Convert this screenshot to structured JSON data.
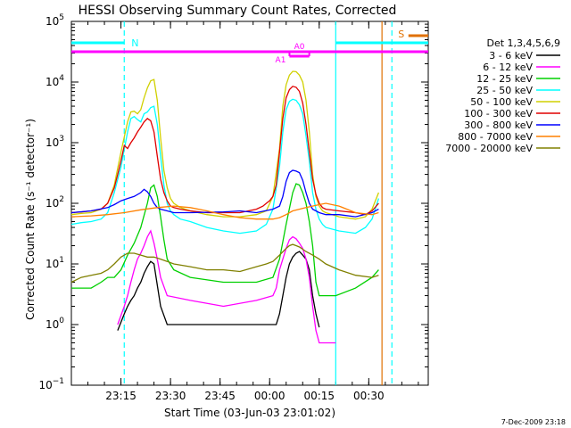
{
  "chart_data": {
    "type": "line",
    "title": "HESSI Observing Summary Count Rates, Corrected",
    "xlabel": "Start Time (03-Jun-03 23:01:02)",
    "ylabel": "Corrected Count Rate (s⁻¹ detector⁻¹)",
    "yscale": "log",
    "ylim": [
      0.1,
      100000
    ],
    "xlim_min": [
      -1,
      107
    ],
    "x_units": "minutes after 23:01:02 UT",
    "yticks": [
      {
        "value": 0.1,
        "base": "10",
        "exp": "−1"
      },
      {
        "value": 1,
        "base": "10",
        "exp": "0"
      },
      {
        "value": 10,
        "base": "10",
        "exp": "1"
      },
      {
        "value": 100,
        "base": "10",
        "exp": "2"
      },
      {
        "value": 1000,
        "base": "10",
        "exp": "3"
      },
      {
        "value": 10000,
        "base": "10",
        "exp": "4"
      },
      {
        "value": 100000,
        "base": "10",
        "exp": "5"
      }
    ],
    "xticks": [
      {
        "value": 14,
        "label": "23:15"
      },
      {
        "value": 29,
        "label": "23:30"
      },
      {
        "value": 44,
        "label": "23:45"
      },
      {
        "value": 59,
        "label": "00:00"
      },
      {
        "value": 74,
        "label": "00:15"
      },
      {
        "value": 89,
        "label": "00:30"
      }
    ],
    "legend": {
      "header": "Det 1,3,4,5,6,9",
      "placement": "right"
    },
    "series": [
      {
        "name": "3 - 6 keV",
        "color": "#000000",
        "x": [
          13,
          15,
          16,
          17,
          18,
          19,
          20,
          21,
          22,
          23,
          24,
          26,
          28,
          35,
          45,
          55,
          61,
          62,
          63,
          64,
          65,
          66,
          67,
          68,
          69,
          70,
          71,
          72,
          73,
          74
        ],
        "y": [
          0.8,
          1.5,
          2,
          2.5,
          3,
          4,
          5,
          7,
          9,
          11,
          10,
          2,
          1,
          1,
          1,
          1,
          1,
          1.5,
          3,
          6,
          10,
          13,
          15,
          16,
          14,
          12,
          8,
          3,
          1.5,
          0.9
        ]
      },
      {
        "name": "6 - 12 keV",
        "color": "#ff00ff",
        "x": [
          13,
          15,
          16,
          17,
          18,
          19,
          20,
          21,
          22,
          23,
          24,
          25,
          26,
          28,
          35,
          45,
          55,
          60,
          61,
          62,
          63,
          64,
          65,
          66,
          67,
          68,
          69,
          70,
          71,
          72,
          73,
          74,
          75,
          79
        ],
        "y": [
          1,
          2,
          3,
          5,
          8,
          12,
          15,
          20,
          28,
          35,
          22,
          12,
          6,
          3,
          2.5,
          2,
          2.5,
          3,
          4,
          8,
          12,
          18,
          25,
          28,
          26,
          22,
          18,
          12,
          6,
          2,
          0.8,
          0.5,
          0.5,
          0.5
        ]
      },
      {
        "name": "12 - 25 keV",
        "color": "#00d000",
        "x": [
          -1,
          5,
          8,
          10,
          12,
          14,
          16,
          18,
          20,
          22,
          23,
          24,
          25,
          26,
          27,
          28,
          30,
          35,
          45,
          55,
          60,
          62,
          64,
          66,
          67,
          68,
          69,
          70,
          71,
          72,
          73,
          74,
          76,
          79,
          85,
          90,
          92
        ],
        "y": [
          4,
          4,
          5,
          6,
          6,
          8,
          14,
          22,
          40,
          100,
          180,
          200,
          130,
          60,
          25,
          12,
          8,
          6,
          5,
          5,
          6,
          12,
          45,
          150,
          210,
          200,
          150,
          100,
          50,
          20,
          5,
          3,
          3,
          3,
          4,
          6,
          8
        ]
      },
      {
        "name": "25 - 50 keV",
        "color": "#00ffff",
        "x": [
          -1,
          2,
          5,
          8,
          10,
          12,
          14,
          16,
          17,
          18,
          19,
          20,
          21,
          22,
          23,
          24,
          25,
          26,
          27,
          28,
          29,
          30,
          32,
          35,
          40,
          45,
          50,
          55,
          58,
          60,
          62,
          63,
          64,
          65,
          66,
          67,
          68,
          69,
          70,
          71,
          72,
          73,
          74,
          75,
          76,
          80,
          85,
          88,
          90,
          92
        ],
        "y": [
          45,
          48,
          50,
          55,
          70,
          150,
          400,
          1500,
          2500,
          2700,
          2400,
          2200,
          3000,
          3200,
          3800,
          4000,
          2000,
          600,
          200,
          100,
          75,
          65,
          55,
          50,
          40,
          35,
          32,
          35,
          45,
          80,
          400,
          1500,
          3500,
          4800,
          5200,
          5000,
          4200,
          3000,
          1300,
          500,
          150,
          80,
          55,
          45,
          40,
          35,
          32,
          40,
          55,
          120
        ]
      },
      {
        "name": "50 - 100 keV",
        "color": "#d0d000",
        "x": [
          -1,
          2,
          5,
          8,
          10,
          12,
          14,
          16,
          17,
          18,
          19,
          20,
          21,
          22,
          23,
          24,
          25,
          26,
          27,
          28,
          29,
          30,
          32,
          35,
          40,
          45,
          50,
          55,
          58,
          60,
          62,
          63,
          64,
          65,
          66,
          67,
          68,
          69,
          70,
          71,
          72,
          73,
          74,
          75,
          76,
          80,
          85,
          88,
          90,
          92
        ],
        "y": [
          65,
          68,
          70,
          80,
          100,
          200,
          700,
          2200,
          3200,
          3300,
          3000,
          3500,
          5500,
          8000,
          10500,
          11000,
          5000,
          1200,
          350,
          180,
          120,
          100,
          85,
          75,
          65,
          60,
          60,
          65,
          75,
          130,
          800,
          4000,
          9000,
          13000,
          15000,
          14800,
          13000,
          10000,
          5000,
          1500,
          300,
          130,
          90,
          75,
          70,
          60,
          55,
          60,
          80,
          150
        ]
      },
      {
        "name": "100 - 300 keV",
        "color": "#e00000",
        "x": [
          -1,
          2,
          5,
          8,
          10,
          12,
          13,
          14,
          15,
          16,
          17,
          18,
          19,
          20,
          21,
          22,
          23,
          24,
          25,
          26,
          27,
          28,
          29,
          30,
          32,
          35,
          40,
          45,
          50,
          55,
          57,
          58,
          59,
          60,
          61,
          62,
          63,
          64,
          65,
          66,
          67,
          68,
          69,
          70,
          71,
          72,
          73,
          74,
          75,
          76,
          80,
          85,
          88,
          90,
          92
        ],
        "y": [
          70,
          72,
          75,
          80,
          100,
          180,
          300,
          500,
          900,
          800,
          1000,
          1200,
          1500,
          1800,
          2200,
          2500,
          2300,
          1500,
          600,
          250,
          150,
          110,
          90,
          85,
          80,
          75,
          70,
          70,
          70,
          80,
          90,
          100,
          110,
          130,
          200,
          700,
          2500,
          5500,
          7500,
          8500,
          8200,
          7000,
          4500,
          2000,
          700,
          250,
          140,
          100,
          85,
          80,
          75,
          70,
          65,
          75,
          100
        ]
      },
      {
        "name": "300 - 800 keV",
        "color": "#0000ff",
        "x": [
          -1,
          5,
          10,
          12,
          14,
          16,
          18,
          20,
          21,
          22,
          23,
          24,
          25,
          26,
          28,
          30,
          35,
          45,
          50,
          55,
          60,
          62,
          63,
          64,
          65,
          66,
          67,
          68,
          69,
          70,
          71,
          72,
          73,
          74,
          76,
          80,
          85,
          90,
          92
        ],
        "y": [
          70,
          75,
          85,
          95,
          110,
          120,
          130,
          150,
          170,
          155,
          130,
          100,
          85,
          80,
          75,
          70,
          70,
          72,
          75,
          70,
          80,
          90,
          130,
          230,
          320,
          350,
          340,
          320,
          240,
          150,
          100,
          80,
          75,
          70,
          65,
          65,
          60,
          70,
          80
        ]
      },
      {
        "name": "800 - 7000 keV",
        "color": "#ff8000",
        "x": [
          -1,
          5,
          10,
          15,
          20,
          25,
          30,
          35,
          40,
          45,
          50,
          55,
          60,
          62,
          64,
          66,
          68,
          70,
          72,
          74,
          76,
          80,
          85,
          90,
          92
        ],
        "y": [
          60,
          62,
          65,
          70,
          78,
          85,
          90,
          85,
          75,
          65,
          58,
          55,
          55,
          58,
          65,
          75,
          80,
          85,
          90,
          95,
          100,
          90,
          70,
          65,
          70
        ]
      },
      {
        "name": "7000 - 20000 keV",
        "color": "#808000",
        "x": [
          -1,
          2,
          5,
          8,
          10,
          12,
          14,
          16,
          18,
          20,
          22,
          24,
          26,
          28,
          30,
          35,
          40,
          45,
          50,
          55,
          58,
          60,
          62,
          64,
          65,
          66,
          67,
          68,
          70,
          72,
          74,
          76,
          80,
          85,
          90,
          92
        ],
        "y": [
          5,
          6,
          6.5,
          7,
          8,
          10,
          13,
          15,
          15,
          14,
          13,
          13,
          12,
          11,
          10,
          9,
          8,
          8,
          7.5,
          9,
          10,
          11,
          14,
          18,
          20,
          21,
          20,
          19,
          16,
          14,
          12,
          10,
          8,
          6.5,
          6,
          6.5
        ]
      }
    ],
    "annotations": {
      "attenuator_labels": [
        "A0",
        "A1"
      ],
      "attenuator_bar_ranges": [
        [
          -1,
          107
        ]
      ],
      "a0_bar_range": [
        65,
        71
      ],
      "night_label": "N",
      "night_bars": [
        [
          -1,
          15
        ],
        [
          79,
          107
        ]
      ],
      "saa_label": "S",
      "saa_bar_range": [
        101,
        107
      ]
    },
    "vertical_markers": [
      {
        "x": 15,
        "color": "#00ffff",
        "style": "dashed"
      },
      {
        "x": 79,
        "color": "#00ffff",
        "style": "solid"
      },
      {
        "x": 93,
        "color": "#e07000",
        "style": "solid"
      },
      {
        "x": 96,
        "color": "#00ffff",
        "style": "dashed"
      }
    ]
  },
  "timestamp": "7-Dec-2009 23:18"
}
